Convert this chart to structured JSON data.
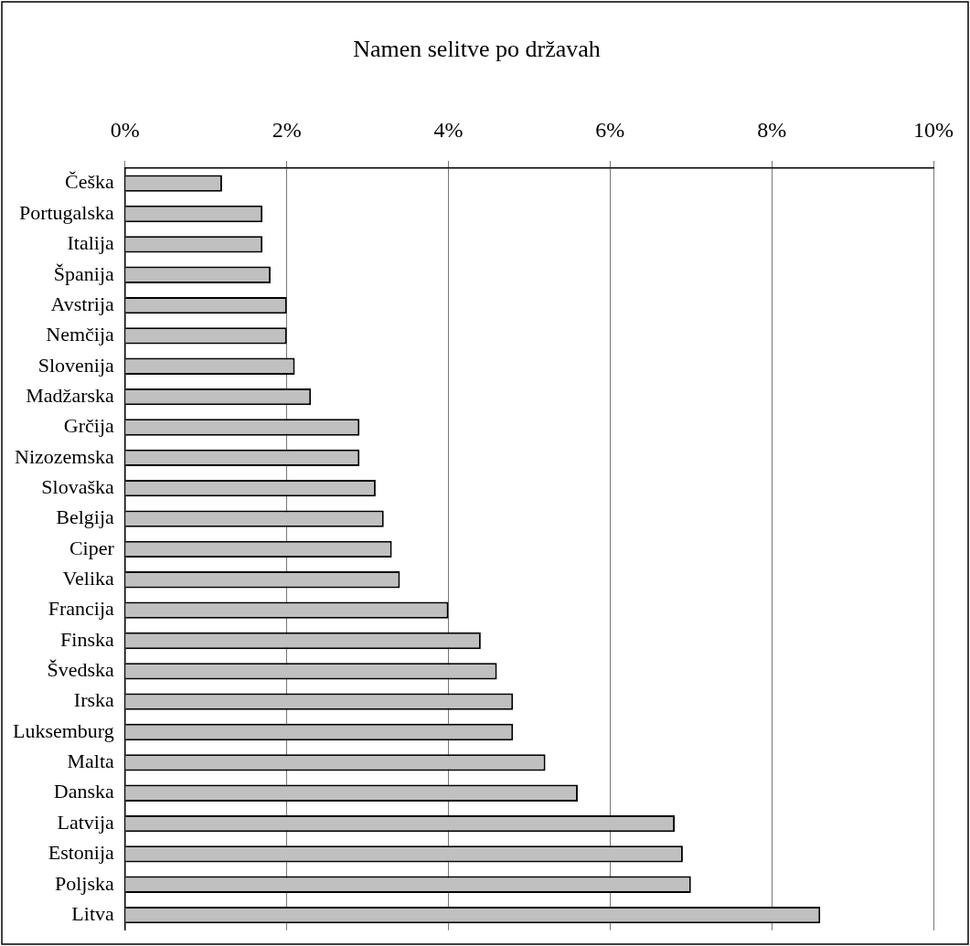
{
  "chart_data": {
    "type": "bar",
    "orientation": "horizontal",
    "title": "Namen selitve po državah",
    "categories": [
      "Češka",
      "Portugalska",
      "Italija",
      "Španija",
      "Avstrija",
      "Nemčija",
      "Slovenija",
      "Madžarska",
      "Grčija",
      "Nizozemska",
      "Slovaška",
      "Belgija",
      "Ciper",
      "Velika",
      "Francija",
      "Finska",
      "Švedska",
      "Irska",
      "Luksemburg",
      "Malta",
      "Danska",
      "Latvija",
      "Estonija",
      "Poljska",
      "Litva"
    ],
    "values": [
      1.2,
      1.7,
      1.7,
      1.8,
      2.0,
      2.0,
      2.1,
      2.3,
      2.9,
      2.9,
      3.1,
      3.2,
      3.3,
      3.4,
      4.0,
      4.4,
      4.6,
      4.8,
      4.8,
      5.2,
      5.6,
      6.8,
      6.9,
      7.0,
      8.6
    ],
    "color": "#c0c0c0",
    "xlim": [
      0,
      10
    ],
    "xticks": [
      {
        "value": 0,
        "label": "0%"
      },
      {
        "value": 2,
        "label": "2%"
      },
      {
        "value": 4,
        "label": "4%"
      },
      {
        "value": 6,
        "label": "6%"
      },
      {
        "value": 8,
        "label": "8%"
      },
      {
        "value": 10,
        "label": "10%"
      }
    ],
    "grid": "x",
    "legend": false
  }
}
